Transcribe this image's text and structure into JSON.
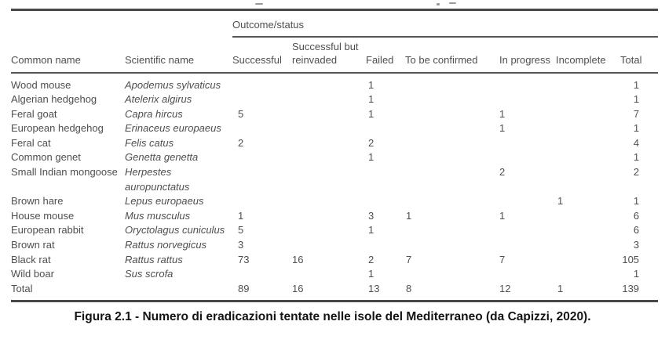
{
  "table": {
    "group_header": "Outcome/status",
    "columns": [
      "Common name",
      "Scientific name",
      "Successful",
      "Successful but reinvaded",
      "Failed",
      "To be confirmed",
      "In progress",
      "Incomplete",
      "Total"
    ],
    "rows": [
      [
        "Wood mouse",
        "Apodemus sylvaticus",
        "",
        "",
        "1",
        "",
        "",
        "",
        "1"
      ],
      [
        "Algerian hedgehog",
        "Atelerix algirus",
        "",
        "",
        "1",
        "",
        "",
        "",
        "1"
      ],
      [
        "Feral goat",
        "Capra hircus",
        "5",
        "",
        "1",
        "",
        "1",
        "",
        "7"
      ],
      [
        "European hedgehog",
        "Erinaceus europaeus",
        "",
        "",
        "",
        "",
        "1",
        "",
        "1"
      ],
      [
        "Feral cat",
        "Felis catus",
        "2",
        "",
        "2",
        "",
        "",
        "",
        "4"
      ],
      [
        "Common genet",
        "Genetta genetta",
        "",
        "",
        "1",
        "",
        "",
        "",
        "1"
      ],
      [
        "Small Indian mongoose",
        "Herpestes auropunctatus",
        "",
        "",
        "",
        "",
        "2",
        "",
        "2"
      ],
      [
        "Brown hare",
        "Lepus europaeus",
        "",
        "",
        "",
        "",
        "",
        "1",
        "1"
      ],
      [
        "House mouse",
        "Mus musculus",
        "1",
        "",
        "3",
        "1",
        "1",
        "",
        "6"
      ],
      [
        "European rabbit",
        "Oryctolagus cuniculus",
        "5",
        "",
        "1",
        "",
        "",
        "",
        "6"
      ],
      [
        "Brown rat",
        "Rattus norvegicus",
        "3",
        "",
        "",
        "",
        "",
        "",
        "3"
      ],
      [
        "Black rat",
        "Rattus rattus",
        "73",
        "16",
        "2",
        "7",
        "7",
        "",
        "105"
      ],
      [
        "Wild boar",
        "Sus scrofa",
        "",
        "",
        "1",
        "",
        "",
        "",
        "1"
      ],
      [
        "Total",
        "",
        "89",
        "16",
        "13",
        "8",
        "12",
        "1",
        "139"
      ]
    ]
  },
  "caption": "Figura 2.1 - Numero di eradicazioni tentate nelle isole del Mediterraneo (da Capizzi, 2020).",
  "colors": {
    "table_text": "#4f4f4f",
    "rule": "#474747",
    "caption_text": "#141414"
  }
}
